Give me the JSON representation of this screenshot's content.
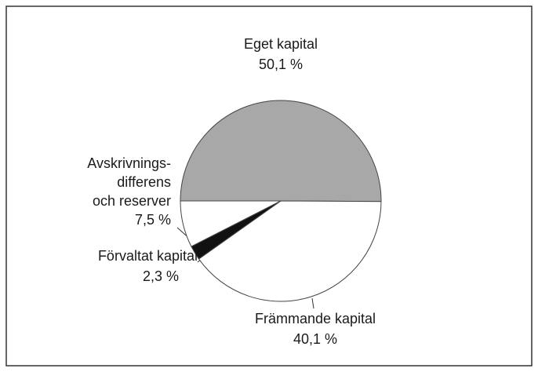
{
  "chart_data": {
    "type": "pie",
    "categories": [
      "Eget kapital",
      "Främmande kapital",
      "Förvaltat kapital",
      "Avskrivnings-\ndifferens\noch reserver"
    ],
    "values": [
      50.1,
      40.1,
      2.3,
      7.5
    ],
    "value_labels": [
      "50,1 %",
      "40,1 %",
      "2,3 %",
      "7,5 %"
    ],
    "colors": [
      "#a8a8a8",
      "#ffffff",
      "#111111",
      "#ffffff"
    ]
  }
}
